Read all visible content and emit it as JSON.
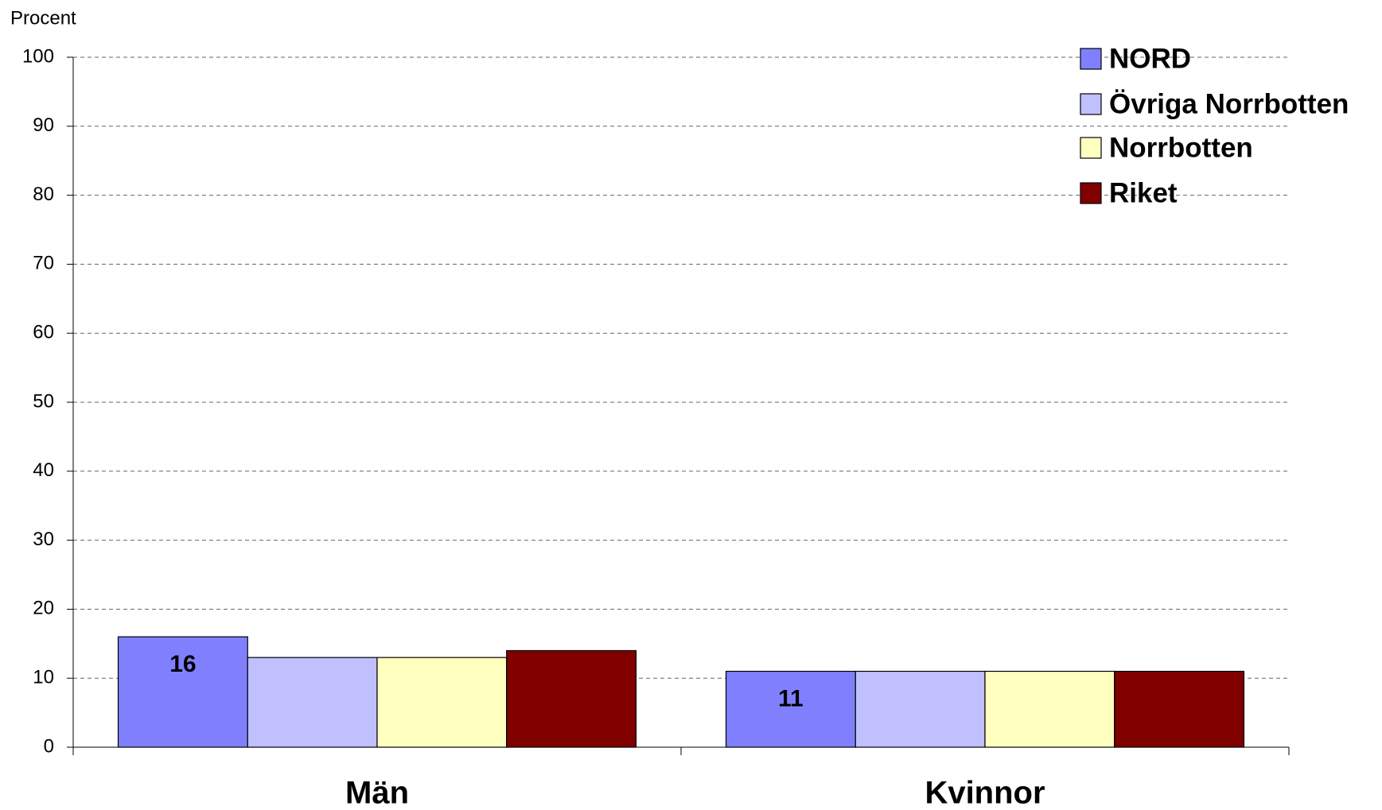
{
  "chart_data": {
    "type": "bar",
    "y_label": "Procent",
    "categories": [
      "Män",
      "Kvinnor"
    ],
    "series": [
      {
        "name": "NORD",
        "color": "#8080ff",
        "values": [
          16,
          11
        ],
        "data_labels": true
      },
      {
        "name": "Övriga Norrbotten",
        "color": "#c0c0ff",
        "values": [
          13,
          11
        ]
      },
      {
        "name": "Norrbotten",
        "color": "#ffffc0",
        "values": [
          13,
          11
        ]
      },
      {
        "name": "Riket",
        "color": "#800000",
        "values": [
          14,
          11
        ]
      }
    ],
    "ylim": [
      0,
      100
    ],
    "yticks": [
      0,
      10,
      20,
      30,
      40,
      50,
      60,
      70,
      80,
      90,
      100
    ],
    "grid": true,
    "legend": "top-right"
  }
}
